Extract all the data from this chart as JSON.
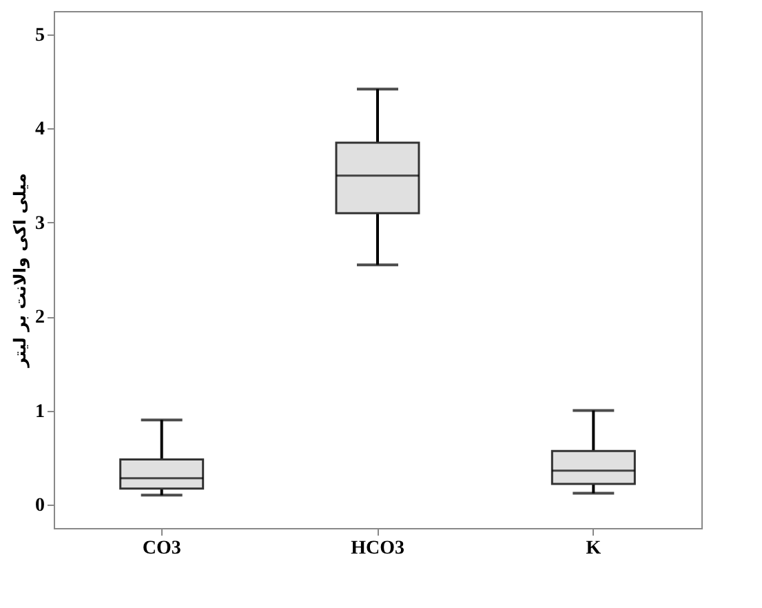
{
  "chart_data": {
    "type": "box",
    "ylabel": "میلی اکی والانت بر لیتر",
    "categories": [
      "CO3",
      "HCO3",
      "K"
    ],
    "boxes": [
      {
        "low": 0.1,
        "q1": 0.17,
        "median": 0.28,
        "q3": 0.48,
        "high": 0.9
      },
      {
        "low": 2.55,
        "q1": 3.1,
        "median": 3.5,
        "q3": 3.85,
        "high": 4.42
      },
      {
        "low": 0.12,
        "q1": 0.22,
        "median": 0.36,
        "q3": 0.57,
        "high": 1.0
      }
    ],
    "color": "#e0e0e0",
    "ylim": [
      -0.25,
      5.25
    ],
    "yticks": [
      0,
      1,
      2,
      3,
      4,
      5
    ]
  }
}
